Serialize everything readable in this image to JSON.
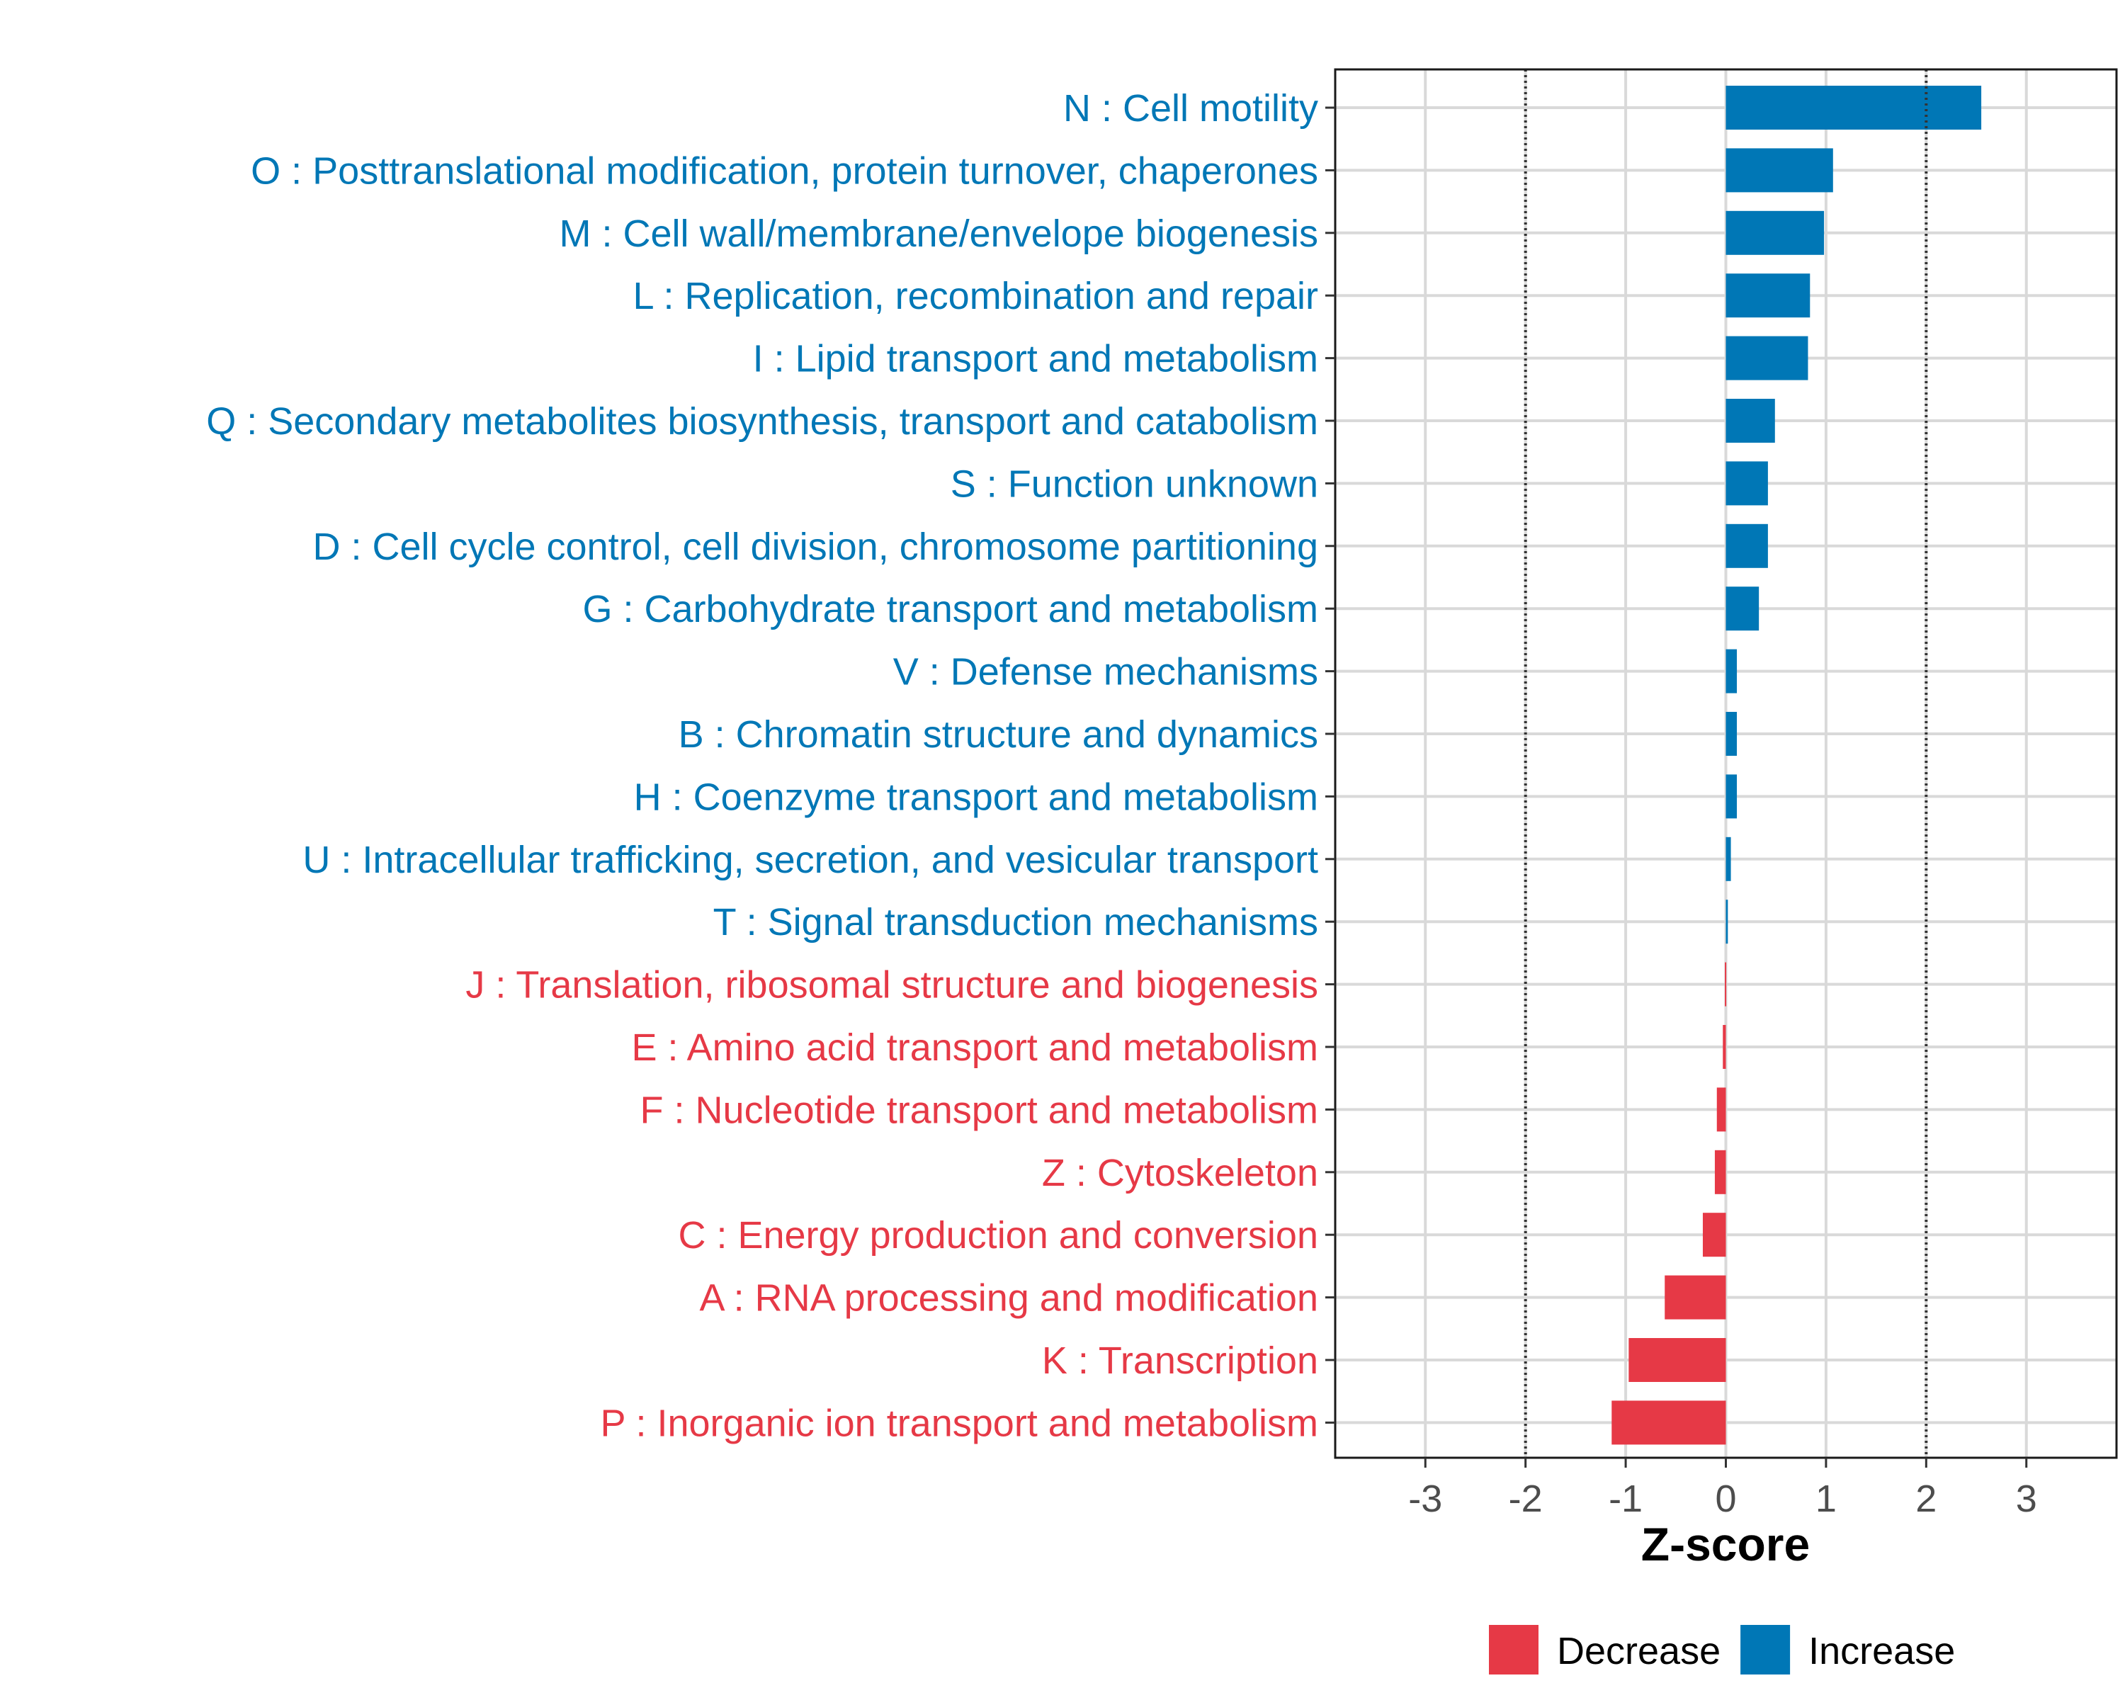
{
  "chart_data": {
    "type": "bar",
    "orientation": "horizontal",
    "xlabel": "Z-score",
    "ylabel": "",
    "xlim": [
      -3.9,
      3.9
    ],
    "xticks": [
      -3,
      -2,
      -1,
      0,
      1,
      2,
      3
    ],
    "reference_lines": [
      -2,
      2
    ],
    "grid": true,
    "legend_position": "bottom",
    "colors": {
      "Decrease": "#e63946",
      "Increase": "#0077b6"
    },
    "legend": [
      {
        "name": "Decrease",
        "color": "#e63946"
      },
      {
        "name": "Increase",
        "color": "#0077b6"
      }
    ],
    "categories": [
      "N : Cell motility",
      "O : Posttranslational modification, protein turnover, chaperones",
      "M : Cell wall/membrane/envelope biogenesis",
      "L : Replication, recombination and repair",
      "I : Lipid transport and metabolism",
      "Q : Secondary metabolites biosynthesis, transport and catabolism",
      "S : Function unknown",
      "D : Cell cycle control, cell division, chromosome partitioning",
      "G : Carbohydrate transport and metabolism",
      "V : Defense mechanisms",
      "B : Chromatin structure and dynamics",
      "H : Coenzyme transport and metabolism",
      "U : Intracellular trafficking, secretion, and vesicular transport",
      "T : Signal transduction mechanisms",
      "J : Translation, ribosomal structure and biogenesis",
      "E : Amino acid transport and metabolism",
      "F : Nucleotide transport and metabolism",
      "Z : Cytoskeleton",
      "C : Energy production and conversion",
      "A : RNA processing and modification",
      "K : Transcription",
      "P : Inorganic ion transport and metabolism"
    ],
    "values": [
      2.55,
      1.07,
      0.98,
      0.84,
      0.82,
      0.49,
      0.42,
      0.42,
      0.33,
      0.11,
      0.11,
      0.11,
      0.05,
      0.02,
      -0.01,
      -0.03,
      -0.09,
      -0.11,
      -0.23,
      -0.61,
      -0.97,
      -1.14
    ],
    "groups": [
      "Increase",
      "Increase",
      "Increase",
      "Increase",
      "Increase",
      "Increase",
      "Increase",
      "Increase",
      "Increase",
      "Increase",
      "Increase",
      "Increase",
      "Increase",
      "Increase",
      "Decrease",
      "Decrease",
      "Decrease",
      "Decrease",
      "Decrease",
      "Decrease",
      "Decrease",
      "Decrease"
    ]
  }
}
